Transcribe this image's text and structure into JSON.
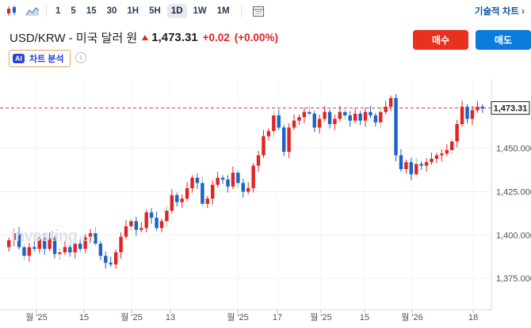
{
  "toolbar": {
    "timeframes": [
      "1",
      "5",
      "15",
      "30",
      "1H",
      "5H",
      "1D",
      "1W",
      "1M"
    ],
    "active_timeframe": "1D",
    "technical_chart_link": "기술적 차트 ›",
    "icons": [
      "candlestick-icon",
      "area-chart-icon",
      "calendar-icon"
    ]
  },
  "header": {
    "symbol": "USD/KRW - 미국 달러 원",
    "price": "1,473.31",
    "change": "+0.02",
    "change_pct": "(+0.00%)",
    "direction": "up"
  },
  "buttons": {
    "buy": "매수",
    "sell": "매도"
  },
  "ai_analysis": {
    "badge": "AI",
    "label": "차트 분석"
  },
  "watermark": {
    "brand": "Investing",
    "suffix": ".com"
  },
  "colors": {
    "up": "#e02424",
    "down": "#1a63c9",
    "accent_buy": "#e8311f",
    "accent_sell": "#0b7bde",
    "price_line": "#e23b3b"
  },
  "chart_data": {
    "type": "candlestick",
    "y_ticks": [
      1375,
      1400,
      1425,
      1450
    ],
    "ylim": [
      1360,
      1490
    ],
    "x_tick_labels": [
      "월 '25",
      "15",
      "월 '25",
      "13",
      "월 '25",
      "17",
      "월 '25",
      "15",
      "월 '26",
      "18"
    ],
    "last_price": 1473.31,
    "last_price_label": "1,473.31",
    "grid": true,
    "candles": []
  }
}
